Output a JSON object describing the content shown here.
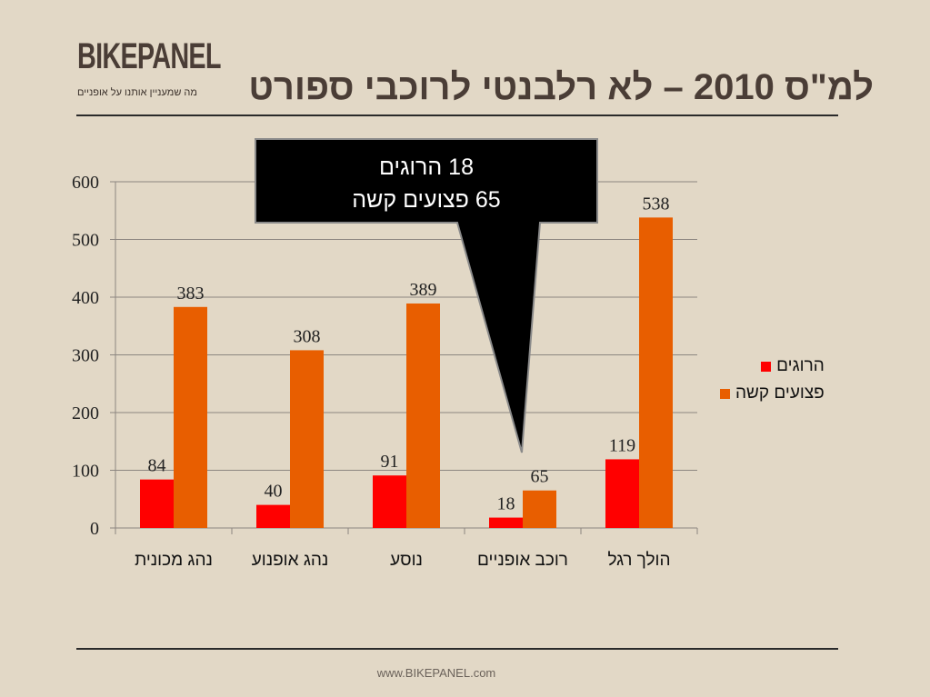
{
  "header": {
    "logo": "BIKEPANEL",
    "tagline": "מה שמעניין אותנו על אופניים",
    "title": "למ\"ס 2010 – לא רלבנטי לרוכבי ספורט"
  },
  "callout": {
    "line1": "18 הרוגים",
    "line2": "65 פצועים קשה"
  },
  "footer": {
    "url": "www.BIKEPANEL.com"
  },
  "chart_data": {
    "type": "bar",
    "categories": [
      "נהג מכונית",
      "נהג אופנוע",
      "נוסע",
      "רוכב אופניים",
      "הולך רגל"
    ],
    "series": [
      {
        "name": "הרוגים",
        "values": [
          84,
          40,
          91,
          18,
          119
        ],
        "color": "#ff0000"
      },
      {
        "name": "פצועים קשה",
        "values": [
          383,
          308,
          389,
          65,
          538
        ],
        "color": "#e85e00"
      }
    ],
    "ylim": [
      0,
      600
    ],
    "yticks": [
      0,
      100,
      200,
      300,
      400,
      500,
      600
    ],
    "grid": true,
    "legend": "right"
  }
}
